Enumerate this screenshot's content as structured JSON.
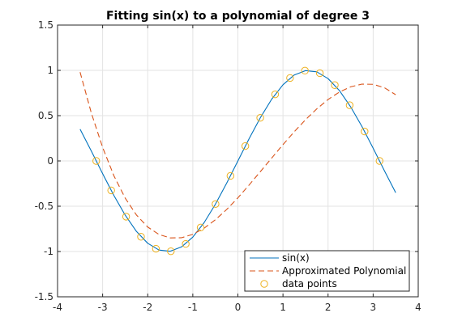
{
  "chart_data": {
    "type": "line",
    "title": "Fitting sin(x) to a polynomial of degree 3",
    "xlabel": "",
    "ylabel": "",
    "xlim": [
      -4,
      4
    ],
    "ylim": [
      -1.5,
      1.5
    ],
    "x_ticks": [
      -4,
      -3,
      -2,
      -1,
      0,
      1,
      2,
      3,
      4
    ],
    "x_tick_labels": [
      "-4",
      "-3",
      "-2",
      "-1",
      "0",
      "1",
      "2",
      "3",
      "4"
    ],
    "y_ticks": [
      -1.5,
      -1,
      -0.5,
      0,
      0.5,
      1,
      1.5
    ],
    "y_tick_labels": [
      "-1.5",
      "-1",
      "-0.5",
      "0",
      "0.5",
      "1",
      "1.5"
    ],
    "grid": true,
    "legend_position": "bottom-right",
    "series": [
      {
        "name": "sin(x)",
        "style": "solid",
        "color": "#0072BD",
        "x": [
          -3.5,
          -3.25,
          -3.0,
          -2.75,
          -2.5,
          -2.25,
          -2.0,
          -1.75,
          -1.5,
          -1.25,
          -1.0,
          -0.75,
          -0.5,
          -0.25,
          0.0,
          0.25,
          0.5,
          0.75,
          1.0,
          1.25,
          1.5,
          1.75,
          2.0,
          2.25,
          2.5,
          2.75,
          3.0,
          3.25,
          3.5
        ],
        "y": [
          0.351,
          0.108,
          -0.141,
          -0.382,
          -0.598,
          -0.778,
          -0.909,
          -0.984,
          -0.997,
          -0.949,
          -0.841,
          -0.682,
          -0.479,
          -0.247,
          0.0,
          0.247,
          0.479,
          0.682,
          0.841,
          0.949,
          0.997,
          0.984,
          0.909,
          0.778,
          0.598,
          0.382,
          0.141,
          -0.108,
          -0.351
        ]
      },
      {
        "name": "Approximated Polynomial",
        "style": "dashed",
        "color": "#D95319",
        "x": [
          -3.5,
          -3.25,
          -3.0,
          -2.75,
          -2.5,
          -2.25,
          -2.0,
          -1.75,
          -1.5,
          -1.25,
          -1.0,
          -0.75,
          -0.5,
          -0.25,
          0.0,
          0.25,
          0.5,
          0.75,
          1.0,
          1.25,
          1.5,
          1.75,
          2.0,
          2.25,
          2.5,
          2.75,
          3.0,
          3.25,
          3.5
        ],
        "y": [
          0.98,
          0.528,
          0.149,
          -0.164,
          -0.41,
          -0.597,
          -0.73,
          -0.812,
          -0.85,
          -0.848,
          -0.81,
          -0.743,
          -0.65,
          -0.537,
          -0.407,
          -0.265,
          -0.117,
          0.032,
          0.18,
          0.322,
          0.455,
          0.575,
          0.678,
          0.76,
          0.818,
          0.848,
          0.846,
          0.808,
          0.731
        ]
      },
      {
        "name": "data points",
        "style": "markers",
        "color": "#EDB120",
        "x": [
          -3.142,
          -2.81,
          -2.479,
          -2.149,
          -1.818,
          -1.487,
          -1.157,
          -0.826,
          -0.496,
          -0.165,
          0.165,
          0.496,
          0.826,
          1.157,
          1.487,
          1.818,
          2.149,
          2.479,
          2.81,
          3.142
        ],
        "y": [
          0.0,
          -0.325,
          -0.615,
          -0.837,
          -0.969,
          -0.997,
          -0.916,
          -0.735,
          -0.476,
          -0.165,
          0.165,
          0.476,
          0.735,
          0.916,
          0.997,
          0.969,
          0.837,
          0.615,
          0.325,
          0.0
        ]
      }
    ]
  }
}
